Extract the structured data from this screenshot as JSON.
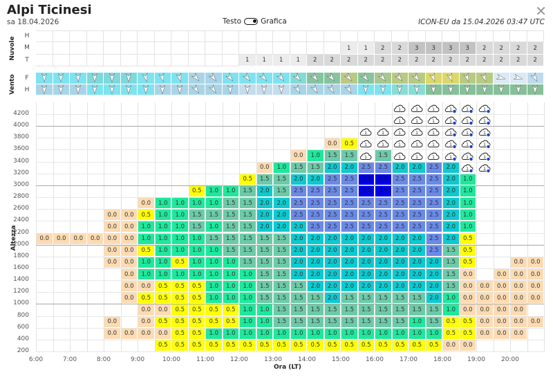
{
  "header": {
    "title": "Alpi Ticinesi",
    "date": "sa 18.04.2026",
    "toggle_left": "Testo",
    "toggle_right": "Grafica",
    "toggle_state": "Grafica",
    "model_info": "ICON-EU da 15.04.2026 03:47 UTC",
    "close_icon": "close-icon"
  },
  "clouds": {
    "label": "Nuvole",
    "rows": [
      {
        "label": "H",
        "values": [
          "",
          "",
          "",
          "",
          "",
          "",
          "",
          "",
          "",
          "",
          "",
          "",
          "",
          "",
          "",
          "",
          "",
          "",
          "",
          "",
          "",
          "",
          "",
          "",
          "",
          "",
          "",
          "",
          "",
          ""
        ]
      },
      {
        "label": "M",
        "values": [
          "",
          "",
          "",
          "",
          "",
          "",
          "",
          "",
          "",
          "",
          "",
          "",
          "",
          "",
          "",
          "",
          "",
          "",
          "1",
          "1",
          "2",
          "2",
          "3",
          "3",
          "3",
          "3",
          "2",
          "2",
          "2",
          "2"
        ]
      },
      {
        "label": "T",
        "values": [
          "",
          "",
          "",
          "",
          "",
          "",
          "",
          "",
          "",
          "",
          "",
          "",
          "1",
          "1",
          "1",
          "1",
          "2",
          "2",
          "2",
          "2",
          "2",
          "2",
          "2",
          "2",
          "2",
          "2",
          "2",
          "2",
          "2",
          "2"
        ]
      }
    ],
    "colors": {
      "1": "#ececec",
      "2": "#d9d9d9",
      "3": "#c2c2c2"
    }
  },
  "wind": {
    "label": "Vento",
    "rows": [
      {
        "label": "F",
        "colors": [
          "#7ee3f0",
          "#7ee3f0",
          "#7ee3f0",
          "#7ed8dc",
          "#7ed8dc",
          "#7ed8dc",
          "#7ee3f0",
          "#7ee3f0",
          "#7ee3f0",
          "#a8d4e8",
          "#a8d4e8",
          "#7ee3f0",
          "#7ee3f0",
          "#7ee3f0",
          "#7ee3f0",
          "#82dcd6",
          "#86c4a0",
          "#86c4a0",
          "#b8ca82",
          "#86c4a0",
          "#a8c890",
          "#b8ca82",
          "#b8ca82",
          "#dcd868",
          "#dcd868",
          "#b8ca82",
          "#b8ca82",
          "#dbe9f5",
          "#dbe9f5",
          "#bcdcee"
        ],
        "directions": [
          0,
          0,
          0,
          0,
          0,
          0,
          -15,
          -15,
          -15,
          -40,
          -40,
          -40,
          -40,
          -40,
          -40,
          -40,
          -40,
          -40,
          -40,
          -40,
          -40,
          -40,
          -40,
          -20,
          -20,
          -20,
          -20,
          -75,
          -75,
          -30
        ]
      },
      {
        "label": "H",
        "colors": [
          "#a8d4e8",
          "#a8d4e8",
          "#a8d4e8",
          "#7ee3f0",
          "#7ee3f0",
          "#7ee3f0",
          "#7ee3f0",
          "#a8d4e8",
          "#a8d4e8",
          "#a8d4e8",
          "#a8d4e8",
          "#a8d4e8",
          "#c4ddec",
          "#c4ddec",
          "#c4ddec",
          "#a8d4e8",
          "#a8d4e8",
          "#a8d4e8",
          "#a8d4e8",
          "#7ee3f0",
          "#7ee3f0",
          "#88dcd6",
          "#88dcd6",
          "#86c098",
          "#86c098",
          "#86c098",
          "#86c098",
          "#86c098",
          "#86c098",
          "#86c098"
        ],
        "directions": [
          0,
          0,
          0,
          0,
          0,
          0,
          0,
          0,
          0,
          -35,
          -35,
          0,
          0,
          0,
          0,
          -30,
          -30,
          -30,
          -30,
          0,
          0,
          0,
          0,
          0,
          0,
          0,
          0,
          0,
          0,
          0
        ]
      }
    ]
  },
  "chart_data": {
    "type": "heatmap",
    "ylabel": "Altezza",
    "xlabel": "Ora (LT)",
    "x_tick_labels": [
      "6:00",
      "7:00",
      "8:00",
      "9:00",
      "10:00",
      "11:00",
      "12:00",
      "13:00",
      "14:00",
      "15:00",
      "16:00",
      "17:00",
      "18:00",
      "19:00",
      "20:00"
    ],
    "y_tick_labels": [
      "4200",
      "4000",
      "3800",
      "3600",
      "3400",
      "3200",
      "3000",
      "2800",
      "2600",
      "2400",
      "2200",
      "2000",
      "1800",
      "1600",
      "1400",
      "1200",
      "1000",
      "800",
      "600",
      "400",
      "200"
    ],
    "columns": [
      "6:00",
      "6:30",
      "7:00",
      "7:30",
      "8:00",
      "8:30",
      "9:00",
      "9:30",
      "10:00",
      "10:30",
      "11:00",
      "11:30",
      "12:00",
      "12:30",
      "13:00",
      "13:30",
      "14:00",
      "14:30",
      "15:00",
      "15:30",
      "16:00",
      "16:30",
      "17:00",
      "17:30",
      "18:00",
      "18:30",
      "19:00",
      "19:30",
      "20:00",
      "20:30"
    ],
    "cell_legend": {
      "C": "cloud-icon",
      "R": "cloud-rain-icon",
      "cloud_icon_label": "1"
    },
    "value_colors": {
      "0.0": "#fddbb2",
      "0.5": "#ffff00",
      "1.0": "#1ee89c",
      "1.5": "#6ccaa8",
      "2.0": "#0ccad0",
      "2.5": "#6a8ae8",
      "3.0": "#0000ee"
    },
    "rows": [
      {
        "band": "4200",
        "values": [
          "",
          "",
          "",
          "",
          "",
          "",
          "",
          "",
          "",
          "",
          "",
          "",
          "",
          "",
          "",
          "",
          "",
          "",
          "",
          "",
          "",
          "C",
          "C",
          "C",
          "R",
          "R",
          "R",
          "",
          "",
          ""
        ]
      },
      {
        "band": "4000",
        "values": [
          "",
          "",
          "",
          "",
          "",
          "",
          "",
          "",
          "",
          "",
          "",
          "",
          "",
          "",
          "",
          "",
          "",
          "",
          "",
          "",
          "",
          "C",
          "C",
          "C",
          "R",
          "R",
          "R",
          "",
          "",
          ""
        ]
      },
      {
        "band": "3800",
        "values": [
          "",
          "",
          "",
          "",
          "",
          "",
          "",
          "",
          "",
          "",
          "",
          "",
          "",
          "",
          "",
          "",
          "",
          "",
          "",
          "C",
          "C",
          "C",
          "C",
          "C",
          "R",
          "R",
          "R",
          "",
          "",
          ""
        ]
      },
      {
        "band": "3600",
        "values": [
          "",
          "",
          "",
          "",
          "",
          "",
          "",
          "",
          "",
          "",
          "",
          "",
          "",
          "",
          "",
          "",
          "",
          "0.0",
          "0.5",
          "C",
          "C",
          "C",
          "C",
          "C",
          "R",
          "R",
          "R",
          "",
          "",
          ""
        ]
      },
      {
        "band": "3400",
        "values": [
          "",
          "",
          "",
          "",
          "",
          "",
          "",
          "",
          "",
          "",
          "",
          "",
          "",
          "",
          "",
          "0.0",
          "1.0",
          "1.5",
          "1.5",
          "C",
          "1.5",
          "C",
          "C",
          "C",
          "R",
          "R",
          "R",
          "",
          "",
          ""
        ]
      },
      {
        "band": "3200",
        "values": [
          "",
          "",
          "",
          "",
          "",
          "",
          "",
          "",
          "",
          "",
          "",
          "",
          "",
          "0.0",
          "1.0",
          "1.5",
          "1.5",
          "2.0",
          "2.0",
          "2.5",
          "2.5",
          "2.0",
          "2.0",
          "2.5",
          "2.0",
          "R",
          "R",
          "",
          "",
          ""
        ]
      },
      {
        "band": "3000",
        "values": [
          "",
          "",
          "",
          "",
          "",
          "",
          "",
          "",
          "",
          "",
          "",
          "",
          "0.5",
          "1.5",
          "1.5",
          "2.0",
          "2.0",
          "2.5",
          "2.5",
          "3.0",
          "3.0",
          "2.5",
          "2.5",
          "2.5",
          "2.0",
          "1.0",
          "",
          "",
          "",
          ""
        ]
      },
      {
        "band": "2800",
        "values": [
          "",
          "",
          "",
          "",
          "",
          "",
          "",
          "",
          "",
          "0.5",
          "1.0",
          "1.0",
          "1.5",
          "2.0",
          "1.5",
          "2.5",
          "2.5",
          "2.5",
          "2.5",
          "3.0",
          "3.0",
          "2.5",
          "2.5",
          "2.5",
          "2.0",
          "1.0",
          "",
          "",
          "",
          ""
        ]
      },
      {
        "band": "2600",
        "values": [
          "",
          "",
          "",
          "",
          "",
          "",
          "0.0",
          "1.0",
          "1.0",
          "1.0",
          "1.0",
          "1.5",
          "1.5",
          "2.0",
          "2.0",
          "2.5",
          "2.5",
          "2.5",
          "2.5",
          "2.5",
          "2.5",
          "2.5",
          "2.5",
          "2.5",
          "2.0",
          "1.0",
          "",
          "",
          "",
          ""
        ]
      },
      {
        "band": "2400",
        "values": [
          "",
          "",
          "",
          "",
          "0.0",
          "0.0",
          "0.5",
          "1.0",
          "1.0",
          "1.5",
          "1.5",
          "1.5",
          "1.5",
          "2.0",
          "2.0",
          "2.5",
          "2.5",
          "2.5",
          "2.5",
          "2.5",
          "2.5",
          "2.5",
          "2.5",
          "2.5",
          "2.0",
          "1.0",
          "",
          "",
          "",
          ""
        ]
      },
      {
        "band": "2200",
        "values": [
          "",
          "",
          "",
          "",
          "0.0",
          "0.0",
          "1.0",
          "1.0",
          "1.0",
          "1.5",
          "1.0",
          "1.5",
          "1.5",
          "2.0",
          "2.0",
          "2.0",
          "2.5",
          "2.5",
          "2.5",
          "2.5",
          "2.5",
          "2.5",
          "2.5",
          "2.5",
          "2.0",
          "1.0",
          "",
          "",
          "",
          ""
        ]
      },
      {
        "band": "2000",
        "values": [
          "0.0",
          "0.0",
          "0.0",
          "0.0",
          "0.0",
          "0.0",
          "1.0",
          "1.0",
          "1.0",
          "1.0",
          "1.5",
          "1.5",
          "1.5",
          "1.5",
          "1.5",
          "2.0",
          "2.0",
          "2.0",
          "2.0",
          "2.0",
          "2.0",
          "2.0",
          "2.0",
          "2.5",
          "2.0",
          "0.5",
          "",
          "",
          "",
          ""
        ]
      },
      {
        "band": "1800",
        "values": [
          "",
          "",
          "",
          "",
          "0.0",
          "0.0",
          "0.5",
          "1.0",
          "1.0",
          "1.0",
          "1.0",
          "1.5",
          "1.5",
          "1.5",
          "1.5",
          "2.0",
          "2.0",
          "2.0",
          "2.0",
          "2.0",
          "2.0",
          "2.0",
          "2.0",
          "2.5",
          "1.5",
          "0.5",
          "",
          "",
          "",
          ""
        ]
      },
      {
        "band": "1600",
        "values": [
          "",
          "",
          "",
          "",
          "0.0",
          "0.0",
          "1.0",
          "1.0",
          "0.5",
          "1.0",
          "1.0",
          "1.0",
          "1.5",
          "1.5",
          "1.5",
          "2.0",
          "2.0",
          "2.0",
          "2.0",
          "2.0",
          "2.0",
          "2.0",
          "2.0",
          "2.0",
          "1.5",
          "0.5",
          "",
          "",
          "0.0",
          "0.0"
        ]
      },
      {
        "band": "1400",
        "values": [
          "",
          "",
          "",
          "",
          "",
          "0.0",
          "1.0",
          "1.0",
          "1.0",
          "1.0",
          "1.0",
          "1.0",
          "1.0",
          "1.5",
          "1.5",
          "2.0",
          "2.0",
          "2.0",
          "2.0",
          "2.0",
          "2.0",
          "2.0",
          "2.0",
          "2.0",
          "1.5",
          "0.0",
          "",
          "0.0",
          "0.0",
          "0.0"
        ]
      },
      {
        "band": "1200",
        "values": [
          "",
          "",
          "",
          "",
          "",
          "0.0",
          "0.0",
          "0.5",
          "0.5",
          "0.5",
          "1.0",
          "1.0",
          "1.0",
          "1.5",
          "1.5",
          "1.5",
          "2.0",
          "2.0",
          "2.0",
          "2.0",
          "2.0",
          "2.0",
          "2.0",
          "2.0",
          "1.5",
          "0.0",
          "0.0",
          "0.0",
          "0.0",
          "0.0"
        ]
      },
      {
        "band": "1000",
        "values": [
          "",
          "",
          "",
          "",
          "",
          "0.0",
          "0.5",
          "0.5",
          "0.5",
          "0.5",
          "1.0",
          "1.0",
          "1.0",
          "1.5",
          "1.5",
          "1.5",
          "1.5",
          "2.0",
          "1.5",
          "1.5",
          "1.5",
          "1.5",
          "1.5",
          "2.0",
          "1.0",
          "0.0",
          "0.0",
          "0.0",
          "0.0",
          "0.0"
        ]
      },
      {
        "band": "800",
        "values": [
          "",
          "",
          "",
          "",
          "",
          "",
          "0.0",
          "0.0",
          "0.5",
          "0.5",
          "0.5",
          "0.5",
          "1.0",
          "1.0",
          "1.5",
          "1.5",
          "1.5",
          "1.5",
          "1.5",
          "1.5",
          "1.5",
          "1.5",
          "1.5",
          "1.5",
          "1.0",
          "0.0",
          "0.0",
          "0.0",
          "0.0",
          ""
        ]
      },
      {
        "band": "600",
        "values": [
          "",
          "",
          "",
          "",
          "0.0",
          "",
          "0.0",
          "0.5",
          "0.5",
          "0.5",
          "0.5",
          "0.5",
          "1.0",
          "1.0",
          "1.5",
          "1.5",
          "1.5",
          "1.5",
          "1.5",
          "1.5",
          "1.5",
          "1.5",
          "1.0",
          "1.5",
          "0.5",
          "0.5",
          "0.0",
          "0.0",
          "0.0",
          "0.0"
        ]
      },
      {
        "band": "400",
        "values": [
          "",
          "",
          "",
          "",
          "0.0",
          "0.0",
          "0.0",
          "0.0",
          "0.5",
          "0.5",
          "1.0",
          "1.0",
          "1.0",
          "1.0",
          "1.0",
          "1.0",
          "1.0",
          "1.0",
          "1.0",
          "1.0",
          "1.0",
          "1.0",
          "1.0",
          "1.0",
          "0.5",
          "0.5",
          "0.0",
          "0.0",
          "0.0",
          ""
        ]
      },
      {
        "band": "200",
        "values": [
          "",
          "",
          "",
          "",
          "",
          "",
          "",
          "0.5",
          "0.5",
          "0.5",
          "0.5",
          "0.5",
          "0.5",
          "0.5",
          "0.5",
          "0.5",
          "0.5",
          "0.5",
          "0.5",
          "0.5",
          "0.5",
          "0.5",
          "0.5",
          "0.5",
          "0.0",
          "0.0",
          "",
          "",
          "",
          ""
        ]
      }
    ]
  }
}
